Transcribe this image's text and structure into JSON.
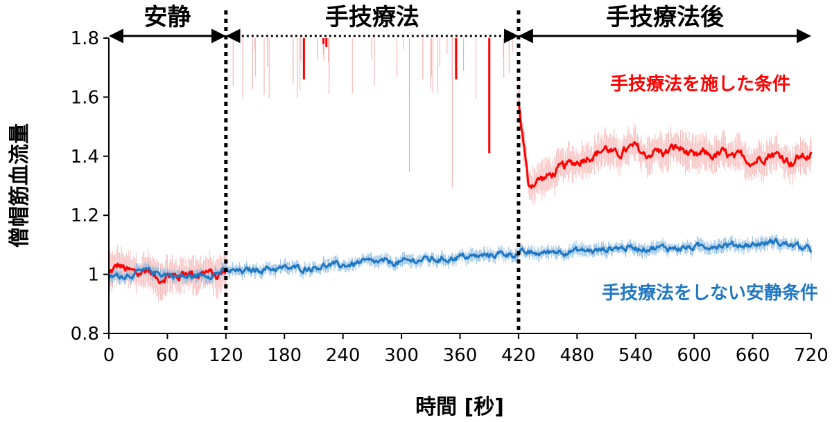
{
  "chart_data": {
    "type": "line",
    "xlabel": "時間 [秒]",
    "ylabel": "僧帽筋血流量",
    "xlim": [
      0,
      720
    ],
    "ylim": [
      0.8,
      1.8
    ],
    "x_ticks": [
      0,
      60,
      120,
      180,
      240,
      300,
      360,
      420,
      480,
      540,
      600,
      660,
      720
    ],
    "y_ticks": [
      0.8,
      1.0,
      1.2,
      1.4,
      1.6,
      1.8
    ],
    "y_tick_labels": [
      "0.8",
      "1",
      "1.2",
      "1.4",
      "1.6",
      "1.8"
    ],
    "grid": false,
    "phases": [
      {
        "label": "安静",
        "start": 0,
        "end": 120,
        "arrow_style": "solid"
      },
      {
        "label": "手技療法",
        "start": 120,
        "end": 420,
        "arrow_style": "dotted"
      },
      {
        "label": "手技療法後",
        "start": 420,
        "end": 720,
        "arrow_style": "solid"
      }
    ],
    "phase_boundaries": [
      120,
      420
    ],
    "series": [
      {
        "name": "手技療法を施した条件",
        "color": "#ff0000",
        "error_color": "#f4a6a6",
        "points": [
          [
            0,
            1.0
          ],
          [
            10,
            1.03
          ],
          [
            20,
            1.01
          ],
          [
            30,
            1.0
          ],
          [
            40,
            1.02
          ],
          [
            50,
            0.98
          ],
          [
            60,
            1.0
          ],
          [
            70,
            0.99
          ],
          [
            80,
            1.01
          ],
          [
            90,
            1.0
          ],
          [
            100,
            1.01
          ],
          [
            110,
            0.99
          ],
          [
            120,
            1.01
          ],
          [
            420,
            1.58
          ],
          [
            425,
            1.45
          ],
          [
            430,
            1.3
          ],
          [
            440,
            1.32
          ],
          [
            450,
            1.33
          ],
          [
            460,
            1.35
          ],
          [
            470,
            1.37
          ],
          [
            480,
            1.38
          ],
          [
            490,
            1.4
          ],
          [
            500,
            1.41
          ],
          [
            510,
            1.43
          ],
          [
            520,
            1.4
          ],
          [
            530,
            1.42
          ],
          [
            540,
            1.43
          ],
          [
            550,
            1.4
          ],
          [
            560,
            1.42
          ],
          [
            570,
            1.41
          ],
          [
            580,
            1.43
          ],
          [
            590,
            1.42
          ],
          [
            600,
            1.39
          ],
          [
            610,
            1.41
          ],
          [
            620,
            1.4
          ],
          [
            630,
            1.41
          ],
          [
            640,
            1.39
          ],
          [
            650,
            1.4
          ],
          [
            660,
            1.38
          ],
          [
            670,
            1.4
          ],
          [
            680,
            1.41
          ],
          [
            690,
            1.4
          ],
          [
            700,
            1.38
          ],
          [
            710,
            1.4
          ],
          [
            720,
            1.4
          ]
        ]
      },
      {
        "name": "手技療法をしない安静条件",
        "color": "#1f77c4",
        "error_color": "#6fa9d8",
        "points": [
          [
            0,
            0.99
          ],
          [
            20,
            1.0
          ],
          [
            40,
            1.01
          ],
          [
            60,
            1.0
          ],
          [
            80,
            0.99
          ],
          [
            100,
            1.0
          ],
          [
            120,
            1.01
          ],
          [
            140,
            1.01
          ],
          [
            160,
            1.02
          ],
          [
            180,
            1.02
          ],
          [
            200,
            1.02
          ],
          [
            220,
            1.03
          ],
          [
            240,
            1.03
          ],
          [
            260,
            1.04
          ],
          [
            280,
            1.04
          ],
          [
            300,
            1.04
          ],
          [
            320,
            1.05
          ],
          [
            340,
            1.05
          ],
          [
            360,
            1.06
          ],
          [
            380,
            1.06
          ],
          [
            400,
            1.07
          ],
          [
            420,
            1.07
          ],
          [
            440,
            1.07
          ],
          [
            460,
            1.08
          ],
          [
            480,
            1.08
          ],
          [
            500,
            1.08
          ],
          [
            520,
            1.09
          ],
          [
            540,
            1.09
          ],
          [
            560,
            1.09
          ],
          [
            580,
            1.09
          ],
          [
            600,
            1.09
          ],
          [
            620,
            1.1
          ],
          [
            640,
            1.1
          ],
          [
            660,
            1.1
          ],
          [
            680,
            1.11
          ],
          [
            700,
            1.1
          ],
          [
            720,
            1.08
          ]
        ]
      }
    ],
    "during_treatment_spikes": [
      {
        "x": 200,
        "from": 1.8,
        "to": 1.66
      },
      {
        "x": 220,
        "from": 1.8,
        "to": 1.78
      },
      {
        "x": 223,
        "from": 1.8,
        "to": 1.77
      },
      {
        "x": 356,
        "from": 1.8,
        "to": 1.66
      },
      {
        "x": 390,
        "from": 1.8,
        "to": 1.41
      }
    ]
  }
}
